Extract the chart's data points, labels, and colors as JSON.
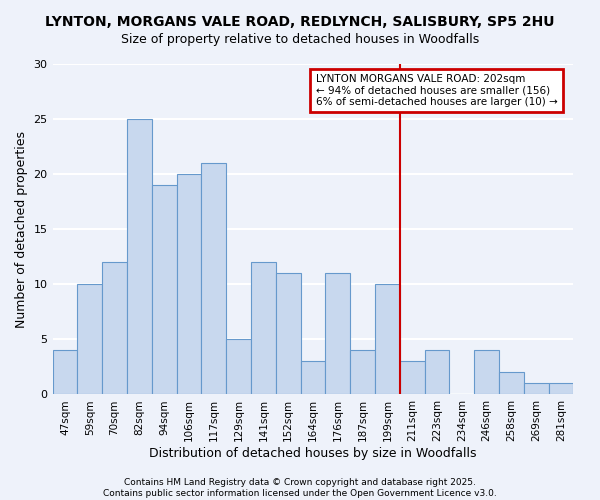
{
  "title_line1": "LYNTON, MORGANS VALE ROAD, REDLYNCH, SALISBURY, SP5 2HU",
  "title_line2": "Size of property relative to detached houses in Woodfalls",
  "xlabel": "Distribution of detached houses by size in Woodfalls",
  "ylabel": "Number of detached properties",
  "categories": [
    "47sqm",
    "59sqm",
    "70sqm",
    "82sqm",
    "94sqm",
    "106sqm",
    "117sqm",
    "129sqm",
    "141sqm",
    "152sqm",
    "164sqm",
    "176sqm",
    "187sqm",
    "199sqm",
    "211sqm",
    "223sqm",
    "234sqm",
    "246sqm",
    "258sqm",
    "269sqm",
    "281sqm"
  ],
  "values": [
    4,
    10,
    12,
    25,
    19,
    20,
    21,
    5,
    12,
    11,
    3,
    11,
    4,
    10,
    3,
    4,
    0,
    4,
    2,
    1,
    1
  ],
  "bar_color": "#c8d8ee",
  "bar_edge_color": "#6699cc",
  "bar_edge_width": 0.8,
  "highlight_index": 13,
  "highlight_color": "#cc0000",
  "ylim": [
    0,
    30
  ],
  "yticks": [
    0,
    5,
    10,
    15,
    20,
    25,
    30
  ],
  "annotation_title": "LYNTON MORGANS VALE ROAD: 202sqm",
  "annotation_line1": "← 94% of detached houses are smaller (156)",
  "annotation_line2": "6% of semi-detached houses are larger (10) →",
  "annotation_box_color": "#cc0000",
  "footnote_line1": "Contains HM Land Registry data © Crown copyright and database right 2025.",
  "footnote_line2": "Contains public sector information licensed under the Open Government Licence v3.0.",
  "background_color": "#eef2fa",
  "grid_color": "#ffffff",
  "title_fontsize": 10,
  "subtitle_fontsize": 9,
  "tick_fontsize": 7.5,
  "ylabel_fontsize": 9,
  "xlabel_fontsize": 9,
  "ann_fontsize": 7.5
}
